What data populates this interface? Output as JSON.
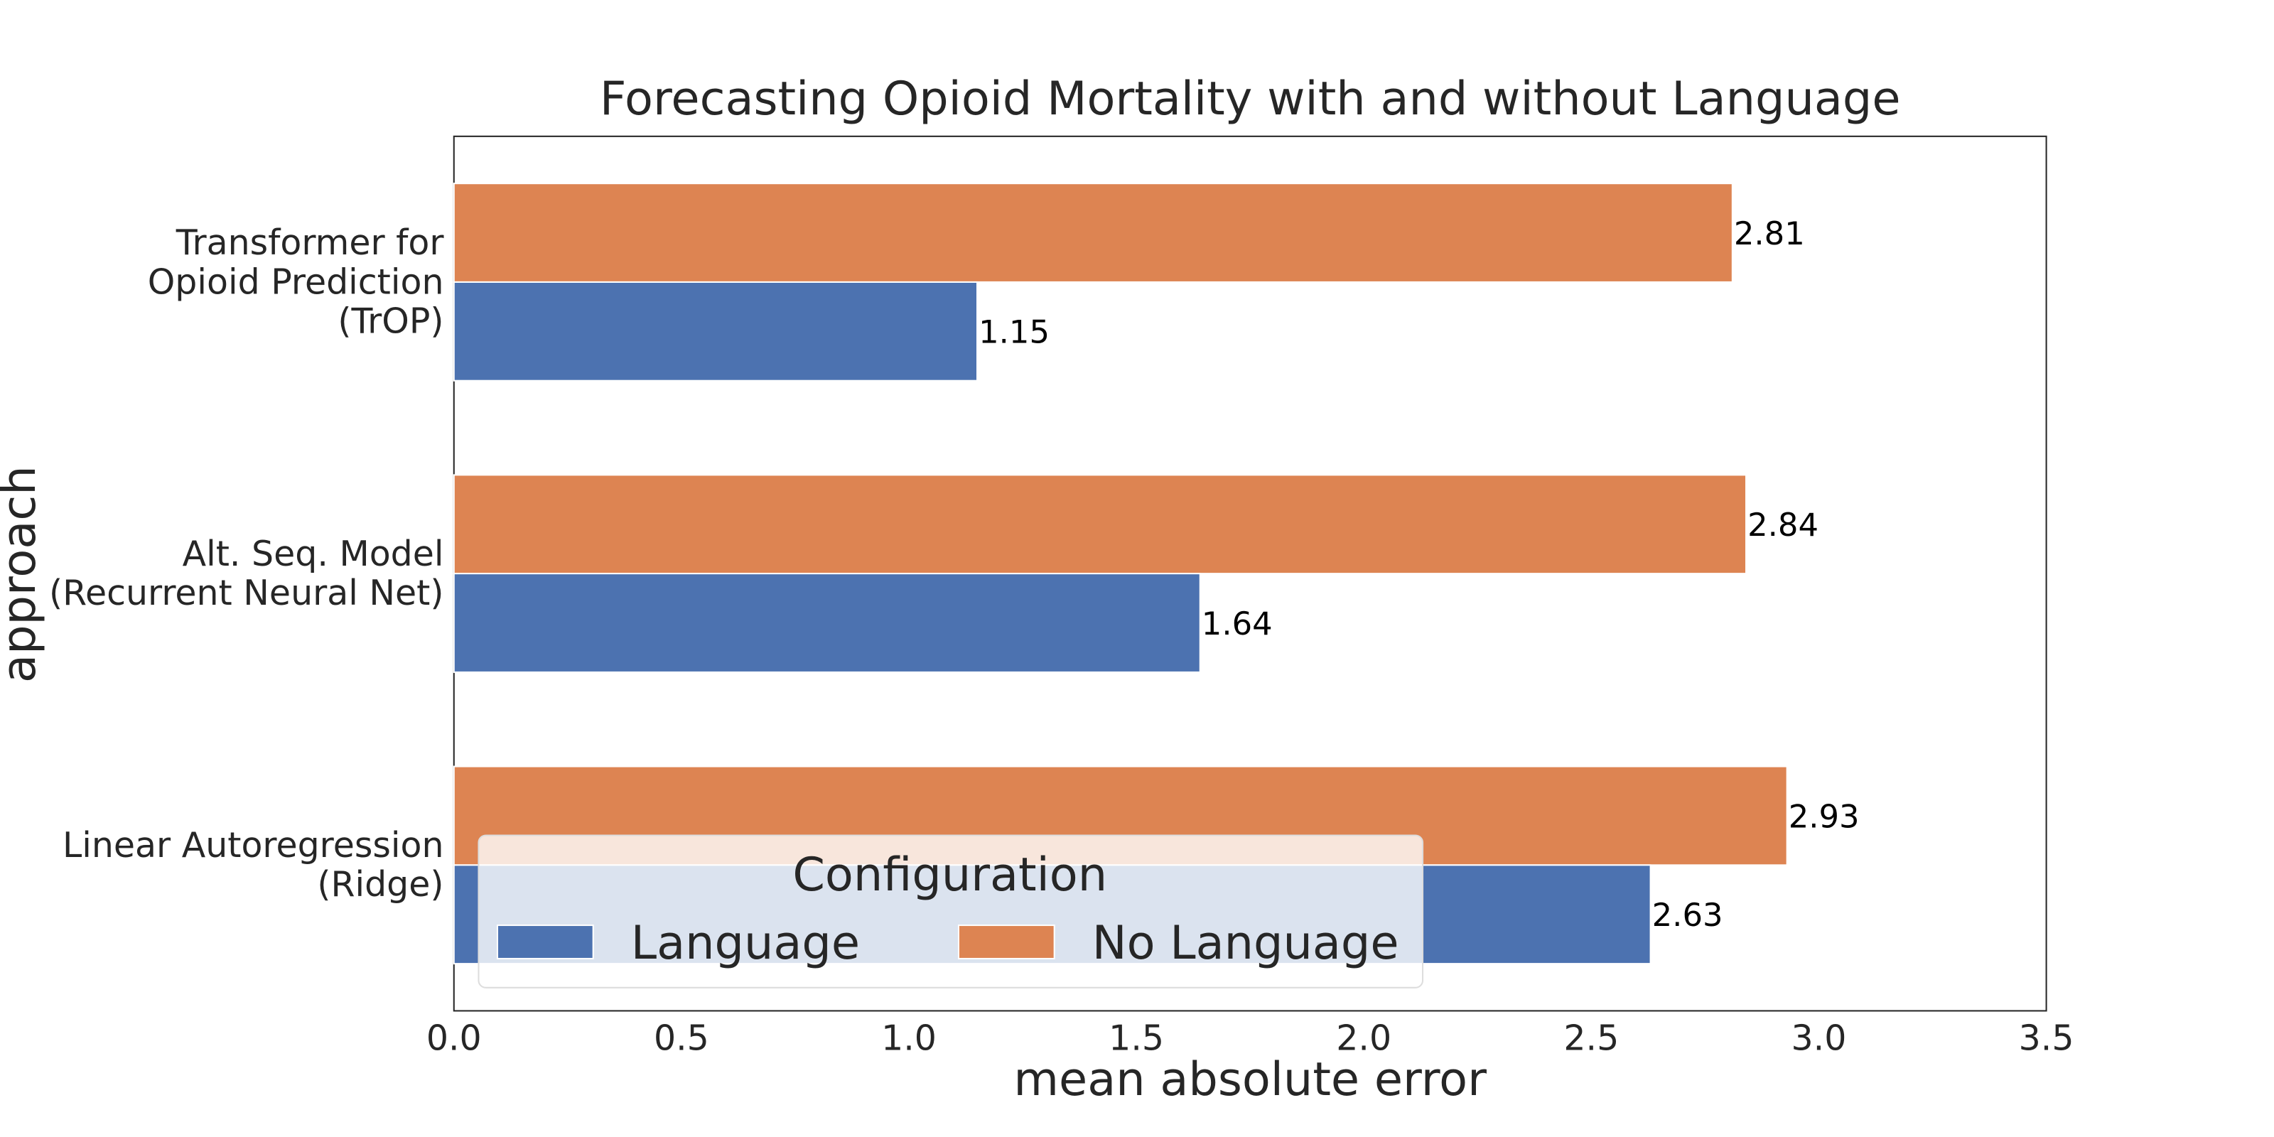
{
  "chart_data": {
    "type": "barh",
    "title": "Forecasting Opioid Mortality with and without Language",
    "xlabel": "mean absolute error",
    "ylabel": "approach",
    "categories": [
      "Transformer for\nOpioid Prediction\n(TrOP)",
      "Alt. Seq. Model\n(Recurrent Neural Net)",
      "Linear Autoregression\n(Ridge)"
    ],
    "series": [
      {
        "name": "No Language",
        "color": "#dd8452",
        "values": [
          2.81,
          2.84,
          2.93
        ]
      },
      {
        "name": "Language",
        "color": "#4c72b0",
        "values": [
          1.15,
          1.64,
          2.63
        ]
      }
    ],
    "xlim": [
      0,
      3.5
    ],
    "xticks": [
      {
        "value": 0,
        "label": "0.0"
      },
      0.5,
      {
        "value": 1,
        "label": "1.0"
      },
      1.5,
      {
        "value": 2,
        "label": "2.0"
      },
      2.5,
      {
        "value": 3,
        "label": "3.0"
      },
      3.5
    ],
    "grid": false,
    "legend": {
      "title": "Configuration",
      "loc": "lower left",
      "order": [
        "Language",
        "No Language"
      ]
    }
  }
}
